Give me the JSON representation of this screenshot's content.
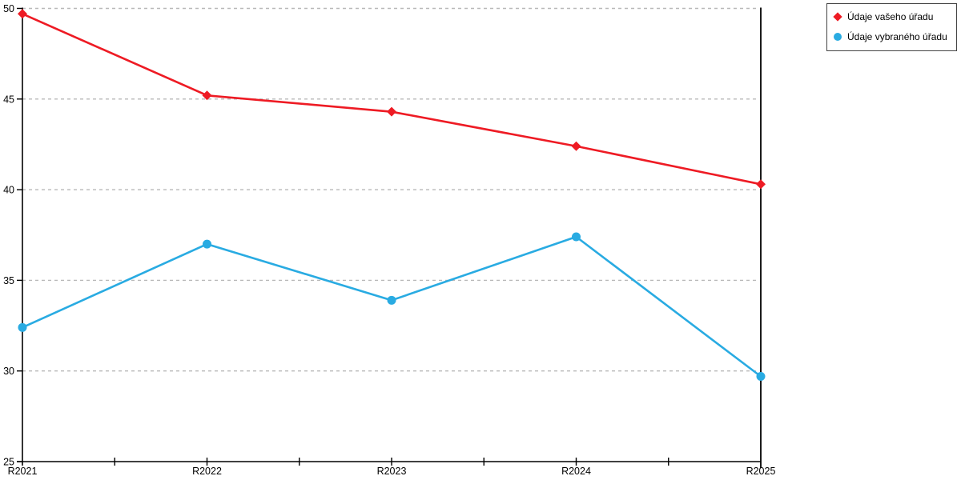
{
  "chart_data": {
    "type": "line",
    "categories": [
      "R2021",
      "R2022",
      "R2023",
      "R2024",
      "R2025"
    ],
    "series": [
      {
        "name": "Údaje vašeho úřadu",
        "marker": "diamond",
        "color": "#ee1b24",
        "values": [
          49.7,
          45.2,
          44.3,
          42.4,
          40.3
        ]
      },
      {
        "name": "Údaje vybraného úřadu",
        "marker": "circle",
        "color": "#29abe2",
        "values": [
          32.4,
          37.0,
          33.9,
          37.4,
          29.7
        ]
      }
    ],
    "title": "",
    "xlabel": "",
    "ylabel": "",
    "ylim": [
      25,
      50
    ],
    "yticks": [
      25,
      30,
      35,
      40,
      45,
      50
    ],
    "grid": "horizontal dashed gridlines at y ticks (25 line is the x-axis)",
    "gridline_color": "#b8b8b8",
    "axis_color": "#000000",
    "legend_position": "outside top-right, boxed"
  }
}
